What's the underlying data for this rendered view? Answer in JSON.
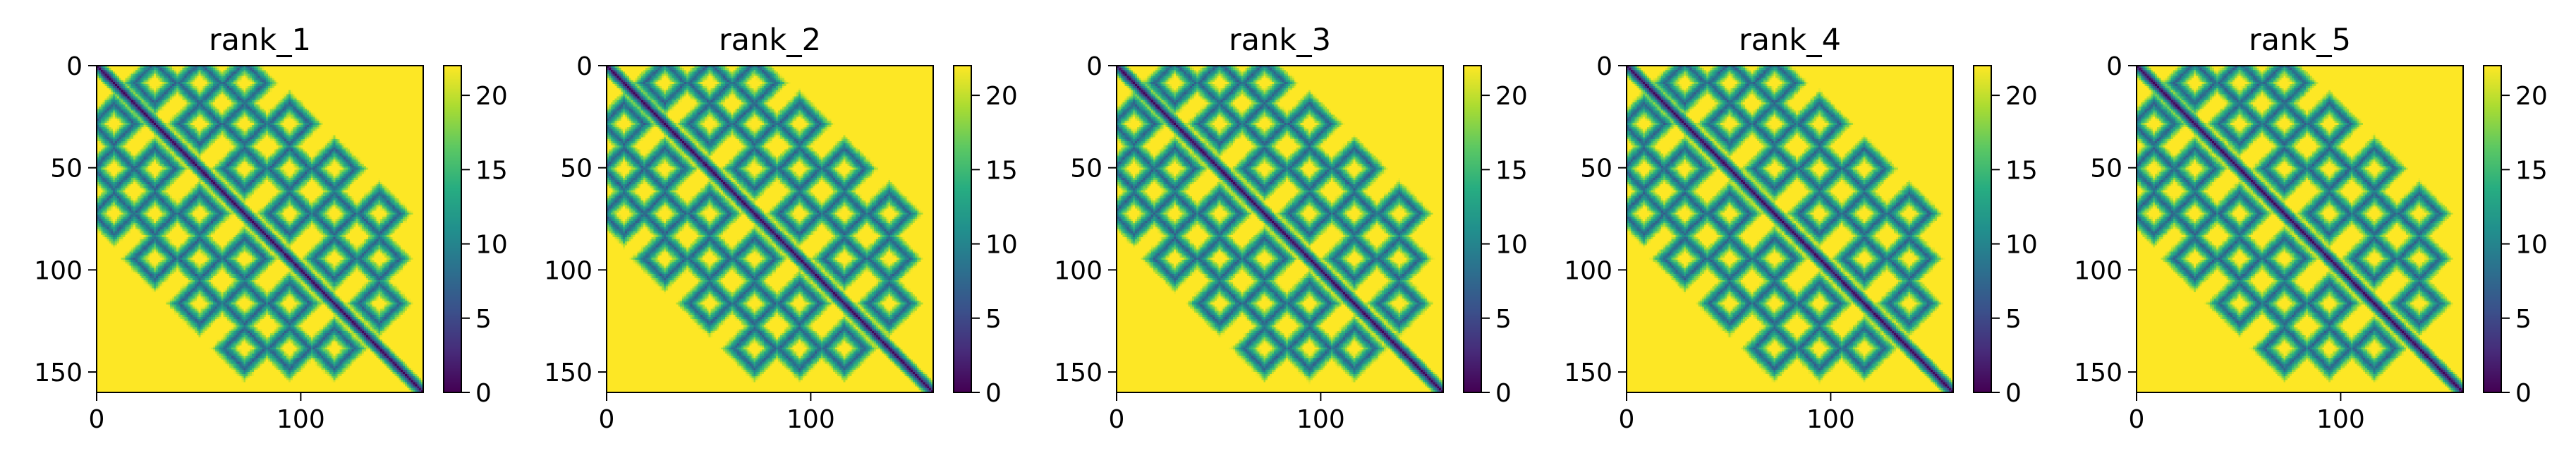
{
  "chart_data": [
    {
      "type": "heatmap",
      "title": "rank_1",
      "xlabel": "",
      "ylabel": "",
      "xlim": [
        0,
        160
      ],
      "ylim": [
        160,
        0
      ],
      "x_ticks": [
        0,
        100
      ],
      "y_ticks": [
        0,
        50,
        100,
        150
      ],
      "x_tick_labels": [
        "0",
        "100"
      ],
      "y_tick_labels": [
        "0",
        "50",
        "100",
        "150"
      ],
      "colorbar": {
        "min": 0,
        "max": 22,
        "ticks": [
          0,
          5,
          10,
          15,
          20
        ],
        "tick_labels": [
          "0",
          "5",
          "10",
          "15",
          "20"
        ]
      },
      "colormap": "viridis",
      "matrix_size": 160
    },
    {
      "type": "heatmap",
      "title": "rank_2",
      "xlabel": "",
      "ylabel": "",
      "xlim": [
        0,
        160
      ],
      "ylim": [
        160,
        0
      ],
      "x_ticks": [
        0,
        100
      ],
      "y_ticks": [
        0,
        50,
        100,
        150
      ],
      "x_tick_labels": [
        "0",
        "100"
      ],
      "y_tick_labels": [
        "0",
        "50",
        "100",
        "150"
      ],
      "colorbar": {
        "min": 0,
        "max": 22,
        "ticks": [
          0,
          5,
          10,
          15,
          20
        ],
        "tick_labels": [
          "0",
          "5",
          "10",
          "15",
          "20"
        ]
      },
      "colormap": "viridis",
      "matrix_size": 160
    },
    {
      "type": "heatmap",
      "title": "rank_3",
      "xlabel": "",
      "ylabel": "",
      "xlim": [
        0,
        160
      ],
      "ylim": [
        160,
        0
      ],
      "x_ticks": [
        0,
        100
      ],
      "y_ticks": [
        0,
        50,
        100,
        150
      ],
      "x_tick_labels": [
        "0",
        "100"
      ],
      "y_tick_labels": [
        "0",
        "50",
        "100",
        "150"
      ],
      "colorbar": {
        "min": 0,
        "max": 22,
        "ticks": [
          0,
          5,
          10,
          15,
          20
        ],
        "tick_labels": [
          "0",
          "5",
          "10",
          "15",
          "20"
        ]
      },
      "colormap": "viridis",
      "matrix_size": 160
    },
    {
      "type": "heatmap",
      "title": "rank_4",
      "xlabel": "",
      "ylabel": "",
      "xlim": [
        0,
        160
      ],
      "ylim": [
        160,
        0
      ],
      "x_ticks": [
        0,
        100
      ],
      "y_ticks": [
        0,
        50,
        100,
        150
      ],
      "x_tick_labels": [
        "0",
        "100"
      ],
      "y_tick_labels": [
        "0",
        "50",
        "100",
        "150"
      ],
      "colorbar": {
        "min": 0,
        "max": 22,
        "ticks": [
          0,
          5,
          10,
          15,
          20
        ],
        "tick_labels": [
          "0",
          "5",
          "10",
          "15",
          "20"
        ]
      },
      "colormap": "viridis",
      "matrix_size": 160
    },
    {
      "type": "heatmap",
      "title": "rank_5",
      "xlabel": "",
      "ylabel": "",
      "xlim": [
        0,
        160
      ],
      "ylim": [
        160,
        0
      ],
      "x_ticks": [
        0,
        100
      ],
      "y_ticks": [
        0,
        50,
        100,
        150
      ],
      "x_tick_labels": [
        "0",
        "100"
      ],
      "y_tick_labels": [
        "0",
        "50",
        "100",
        "150"
      ],
      "colorbar": {
        "min": 0,
        "max": 22,
        "ticks": [
          0,
          5,
          10,
          15,
          20
        ],
        "tick_labels": [
          "0",
          "5",
          "10",
          "15",
          "20"
        ]
      },
      "colormap": "viridis",
      "matrix_size": 160
    }
  ]
}
